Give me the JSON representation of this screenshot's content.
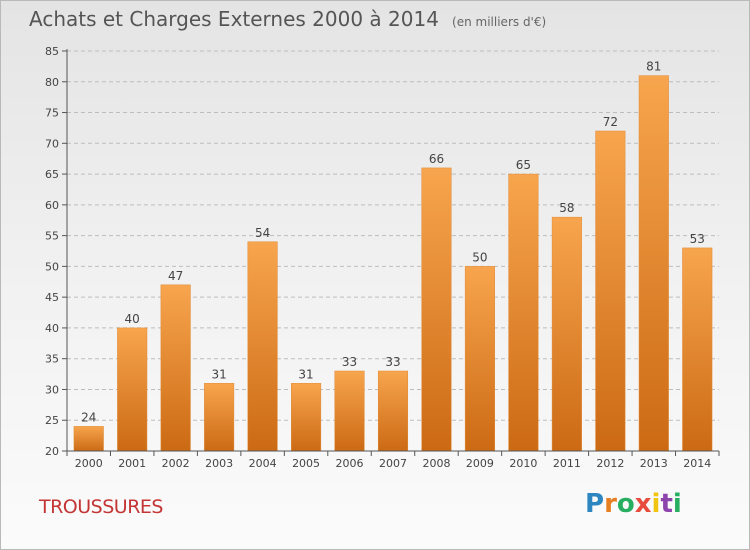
{
  "title": "Achats et Charges Externes 2000 à 2014",
  "unit": "(en milliers d'€)",
  "commune": "TROUSSURES",
  "logo": {
    "letters": [
      "P",
      "r",
      "o",
      "x",
      "i",
      "t",
      "i"
    ],
    "colors": [
      "#2e86c1",
      "#e67e22",
      "#27ae60",
      "#e74c3c",
      "#f1c40f",
      "#8e44ad",
      "#27ae60"
    ]
  },
  "colors": {
    "bar_light": "#f7a54e",
    "bar_dark": "#cc6a14",
    "axis": "#555555",
    "grid": "#bdbdbd",
    "text": "#444444"
  },
  "chart_data": {
    "type": "bar",
    "categories": [
      "2000",
      "2001",
      "2002",
      "2003",
      "2004",
      "2005",
      "2006",
      "2007",
      "2008",
      "2009",
      "2010",
      "2011",
      "2012",
      "2013",
      "2014"
    ],
    "values": [
      24,
      40,
      47,
      31,
      54,
      31,
      33,
      33,
      66,
      50,
      65,
      58,
      72,
      81,
      53
    ],
    "title": "Achats et Charges Externes 2000 à 2014",
    "ylim": [
      20,
      85
    ],
    "yticks": [
      20,
      25,
      30,
      35,
      40,
      45,
      50,
      55,
      60,
      65,
      70,
      75,
      80,
      85
    ],
    "grid": true,
    "data_labels": true
  }
}
